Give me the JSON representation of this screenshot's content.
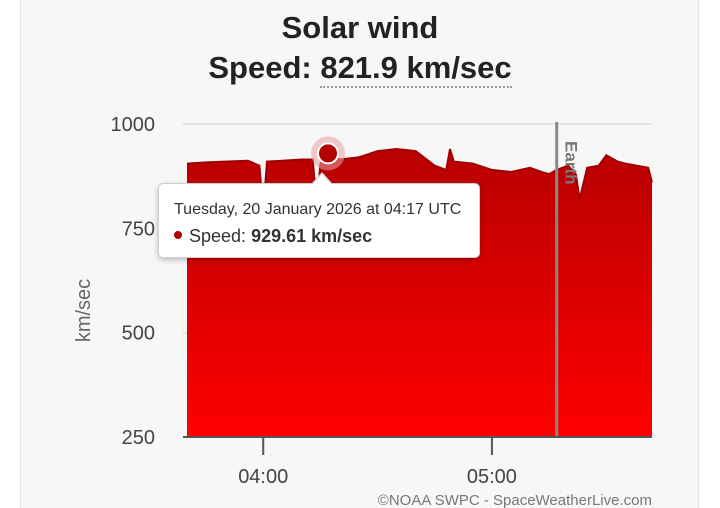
{
  "title": "Solar wind",
  "subtitle_label": "Speed:",
  "subtitle_value": "821.9 km/sec",
  "tooltip": {
    "date": "Tuesday, 20 January 2026 at 04:17 UTC",
    "series_label": "Speed:",
    "value": "929.61 km/sec"
  },
  "earth_label": "Earth",
  "credit": "©NOAA SWPC - SpaceWeatherLive.com",
  "colors": {
    "area_top": "#b80000",
    "area_bottom": "#ff0000",
    "marker": "#b30000",
    "earth_line": "#888888"
  },
  "chart_data": {
    "type": "area",
    "ylabel": "km/sec",
    "ylim": [
      250,
      1000
    ],
    "yticks": [
      250,
      500,
      750,
      1000
    ],
    "x_unit": "UTC time",
    "xlim": [
      "03:40",
      "05:42"
    ],
    "xticks": [
      {
        "label": "04:00",
        "time": "04:00"
      },
      {
        "label": "05:00",
        "time": "05:00"
      }
    ],
    "earth_marker_time": "05:17",
    "highlight": {
      "time": "04:17",
      "value": 929.61
    },
    "series": [
      {
        "name": "Speed",
        "times": [
          "03:40",
          "03:45",
          "03:50",
          "03:56",
          "03:59",
          "04:00",
          "04:01",
          "04:05",
          "04:10",
          "04:13",
          "04:14",
          "04:15",
          "04:17",
          "04:20",
          "04:25",
          "04:30",
          "04:35",
          "04:40",
          "04:45",
          "04:48",
          "04:49",
          "04:50",
          "04:55",
          "05:00",
          "05:05",
          "05:10",
          "05:13",
          "05:15",
          "05:17",
          "05:20",
          "05:22",
          "05:23",
          "05:25",
          "05:28",
          "05:30",
          "05:33",
          "05:35",
          "05:38",
          "05:41",
          "05:42"
        ],
        "values": [
          905,
          908,
          910,
          912,
          900,
          790,
          910,
          912,
          915,
          915,
          800,
          905,
          930,
          915,
          920,
          935,
          940,
          935,
          900,
          890,
          940,
          910,
          905,
          890,
          885,
          895,
          885,
          880,
          890,
          900,
          880,
          820,
          895,
          900,
          925,
          910,
          905,
          900,
          895,
          860
        ]
      }
    ]
  }
}
